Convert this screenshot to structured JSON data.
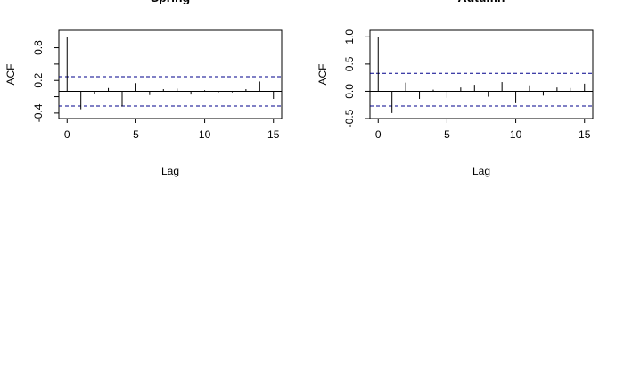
{
  "chart_data": [
    {
      "type": "bar",
      "title": "Spring",
      "xlabel": "Lag",
      "ylabel": "ACF",
      "xlim": [
        -0.6,
        15.6
      ],
      "ylim": [
        -0.5,
        1.12
      ],
      "xticks": [
        0,
        5,
        10,
        15
      ],
      "yticks": [
        -0.4,
        0.2,
        0.8
      ],
      "xtick_labels": [
        "0",
        "5",
        "10",
        "15"
      ],
      "ytick_labels": [
        "-0.4",
        "0.2",
        "0.8"
      ],
      "ytick_minor": [
        -0.1,
        0.5
      ],
      "lags": [
        0,
        1,
        2,
        3,
        4,
        5,
        6,
        7,
        8,
        9,
        10,
        11,
        12,
        13,
        14,
        15
      ],
      "values": [
        1.0,
        -0.33,
        -0.05,
        0.06,
        -0.28,
        0.15,
        -0.07,
        0.04,
        0.05,
        -0.06,
        0.02,
        -0.02,
        -0.02,
        0.04,
        0.18,
        -0.14
      ],
      "confidence_bounds": [
        0.27,
        -0.27
      ],
      "grid": false,
      "bound_color": "#00008b"
    },
    {
      "type": "bar",
      "title": "Autumn",
      "xlabel": "Lag",
      "ylabel": "ACF",
      "xlim": [
        -0.6,
        15.6
      ],
      "ylim": [
        -0.5,
        1.12
      ],
      "xticks": [
        0,
        5,
        10,
        15
      ],
      "yticks": [
        -0.5,
        0.0,
        0.5,
        1.0
      ],
      "xtick_labels": [
        "0",
        "5",
        "10",
        "15"
      ],
      "ytick_labels": [
        "-0.5",
        "0.0",
        "0.5",
        "1.0"
      ],
      "lags": [
        0,
        1,
        2,
        3,
        4,
        5,
        6,
        7,
        8,
        9,
        10,
        11,
        12,
        13,
        14,
        15
      ],
      "values": [
        1.0,
        -0.4,
        0.16,
        -0.14,
        0.03,
        -0.12,
        0.07,
        0.12,
        -0.1,
        0.17,
        -0.22,
        0.11,
        -0.08,
        0.07,
        0.06,
        0.14
      ],
      "confidence_bounds": [
        0.33,
        -0.27
      ],
      "grid": false,
      "bound_color": "#00008b"
    }
  ]
}
